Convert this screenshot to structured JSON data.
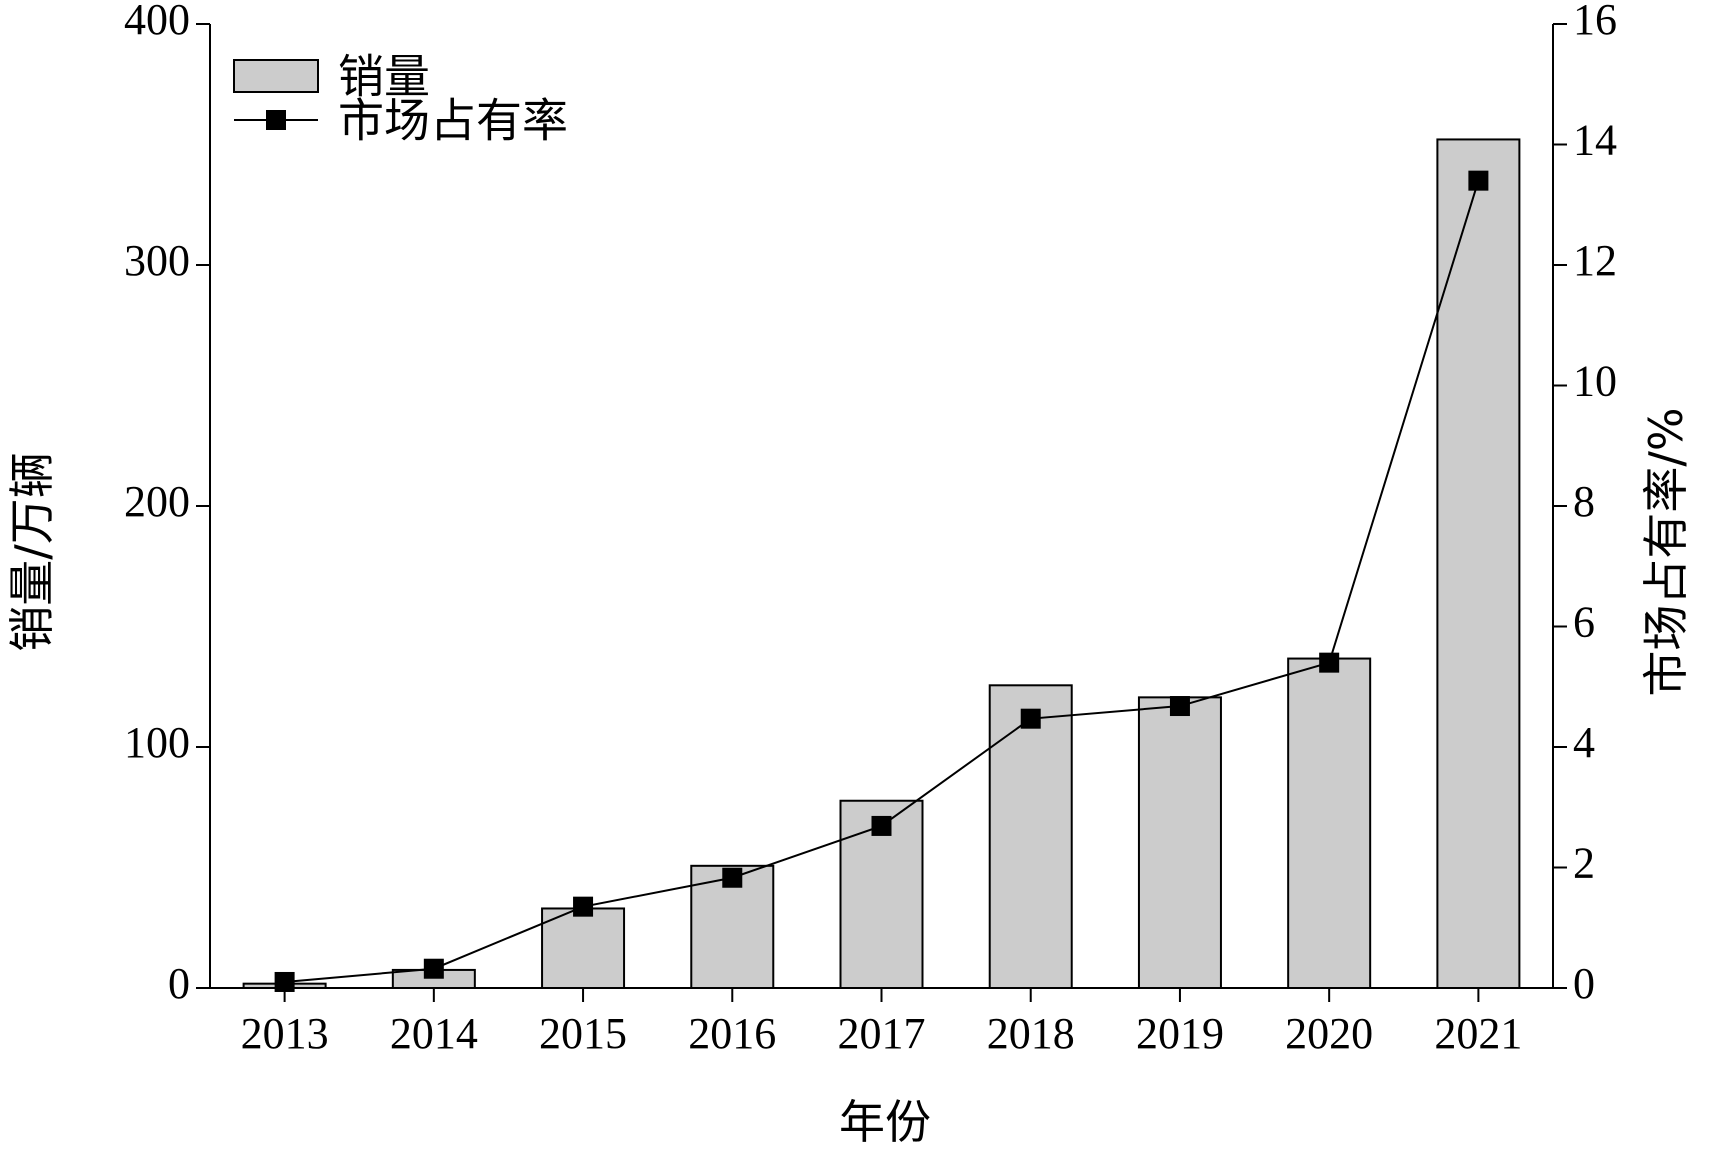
{
  "chart_data": {
    "type": "bar",
    "categories": [
      "2013",
      "2014",
      "2015",
      "2016",
      "2017",
      "2018",
      "2019",
      "2020",
      "2021"
    ],
    "series": [
      {
        "name": "销量",
        "type": "bar",
        "axis": "left",
        "values": [
          1.8,
          7.5,
          33,
          50.7,
          77.7,
          125.6,
          120.6,
          136.7,
          352.1
        ]
      },
      {
        "name": "市场占有率",
        "type": "line",
        "axis": "right",
        "values": [
          0.1,
          0.32,
          1.35,
          1.83,
          2.69,
          4.47,
          4.68,
          5.4,
          13.4
        ]
      }
    ],
    "xlabel": "年份",
    "ylabel_left": "销量/万辆",
    "ylabel_right": "市场占有率/%",
    "ylim_left": [
      0,
      400
    ],
    "yticks_left": [
      "0",
      "100",
      "200",
      "300",
      "400"
    ],
    "ylim_right": [
      0,
      16
    ],
    "yticks_right": [
      "0",
      "2",
      "4",
      "6",
      "8",
      "10",
      "12",
      "14",
      "16"
    ],
    "grid": false,
    "legend_position": "top-left",
    "colors": {
      "bar_fill": "#cccccc",
      "bar_stroke": "#000000",
      "line": "#000000",
      "marker": "#000000"
    }
  }
}
